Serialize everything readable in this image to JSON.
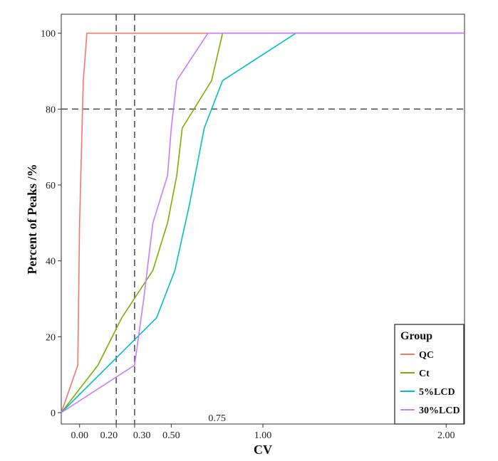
{
  "chart_data": {
    "type": "line",
    "xlabel": "CV",
    "ylabel": "Percent of Peaks /%",
    "xlim": [
      -0.1,
      2.1
    ],
    "ylim": [
      -3,
      105
    ],
    "x_ticks": [
      0.0,
      0.2,
      0.3,
      0.5,
      1.0,
      2.0
    ],
    "x_tick_labels": [
      "0.00",
      "0.20",
      "0.30",
      "0.50",
      "1.00",
      "2.00"
    ],
    "extra_x_ticks": [
      0.75
    ],
    "extra_x_tick_labels": [
      "0.75"
    ],
    "y_ticks": [
      0,
      20,
      40,
      60,
      80,
      100
    ],
    "y_tick_labels": [
      "0",
      "20",
      "40",
      "60",
      "80",
      "100"
    ],
    "reference_lines": {
      "vertical": [
        0.2,
        0.3
      ],
      "horizontal": [
        80
      ]
    },
    "legend": {
      "title": "Group",
      "position": "bottom-right"
    },
    "series": [
      {
        "name": "QC",
        "color": "#F8766D",
        "points": [
          [
            -0.1,
            0
          ],
          [
            -0.01,
            12.5
          ],
          [
            0.0,
            50
          ],
          [
            0.02,
            87.5
          ],
          [
            0.04,
            100
          ],
          [
            2.1,
            100
          ]
        ]
      },
      {
        "name": "Ct",
        "color": "#7CAE00",
        "points": [
          [
            -0.1,
            0
          ],
          [
            0.1,
            12.5
          ],
          [
            0.23,
            25
          ],
          [
            0.4,
            37.5
          ],
          [
            0.48,
            50
          ],
          [
            0.53,
            62.5
          ],
          [
            0.56,
            75
          ],
          [
            0.72,
            87.5
          ],
          [
            0.78,
            100
          ],
          [
            2.1,
            100
          ]
        ]
      },
      {
        "name": "5%LCD",
        "color": "#00BFC4",
        "points": [
          [
            -0.1,
            0
          ],
          [
            0.42,
            25
          ],
          [
            0.52,
            37.5
          ],
          [
            0.6,
            55
          ],
          [
            0.68,
            75
          ],
          [
            0.78,
            87.5
          ],
          [
            1.18,
            100
          ],
          [
            2.1,
            100
          ]
        ]
      },
      {
        "name": "30%LCD",
        "color": "#C77CFF",
        "points": [
          [
            -0.1,
            0
          ],
          [
            0.3,
            12.5
          ],
          [
            0.35,
            30
          ],
          [
            0.4,
            50
          ],
          [
            0.48,
            62.5
          ],
          [
            0.5,
            75
          ],
          [
            0.53,
            87.5
          ],
          [
            0.7,
            100
          ],
          [
            2.1,
            100
          ]
        ]
      }
    ]
  }
}
